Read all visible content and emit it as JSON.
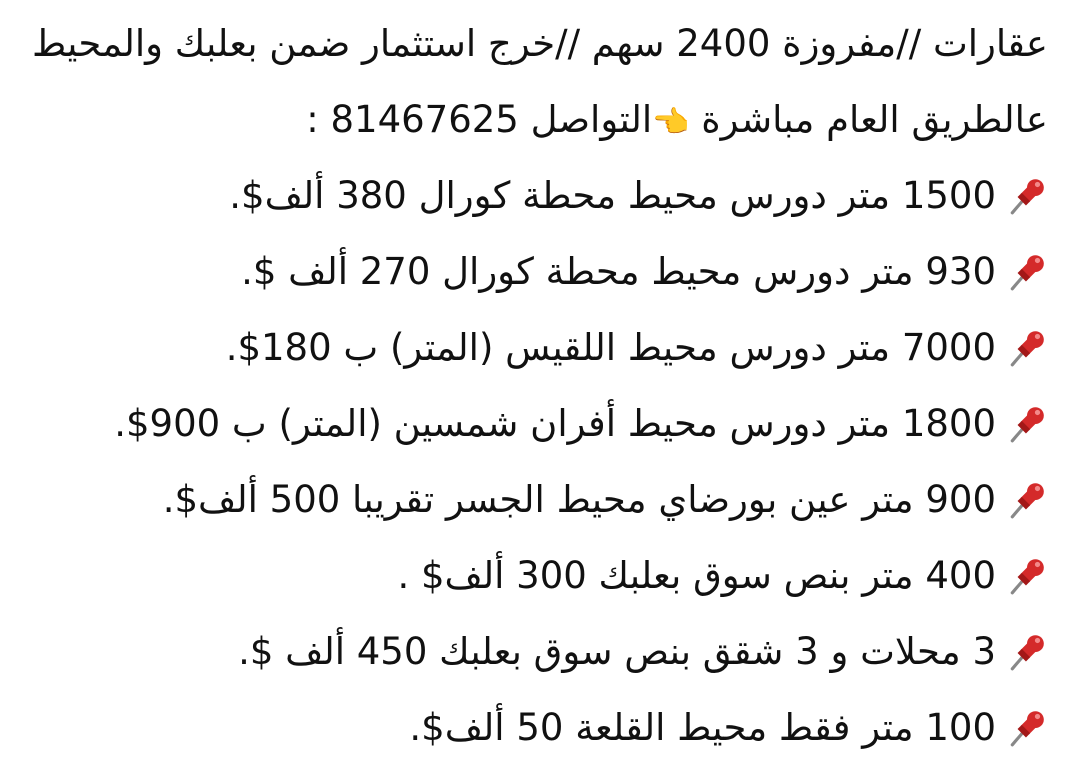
{
  "intro": {
    "line1": "عقارات //مفروزة 2400 سهم //خرج استثمار ضمن بعلبك والمحيط",
    "line2_before": "عالطريق العام مباشرة",
    "line2_emoji": "👈",
    "line2_after": "التواصل 81467625 :"
  },
  "bullet_icon": "pushpin-icon",
  "pin_color": "#d42a2a",
  "listings": [
    "1500 متر دورس محيط محطة كورال 380 ألف$.",
    "930 متر دورس محيط محطة كورال 270 ألف $.",
    "7000 متر دورس محيط اللقيس (المتر) ب 180$.",
    "1800 متر دورس محيط أفران شمسين (المتر) ب 900$.",
    "900 متر عين بورضاي محيط الجسر تقريبا 500 ألف$.",
    "400 متر بنص سوق بعلبك 300 ألف$ .",
    "3 محلات و 3 شقق بنص سوق بعلبك 450 ألف $.",
    "100 متر فقط محيط القلعة 50 ألف$."
  ]
}
